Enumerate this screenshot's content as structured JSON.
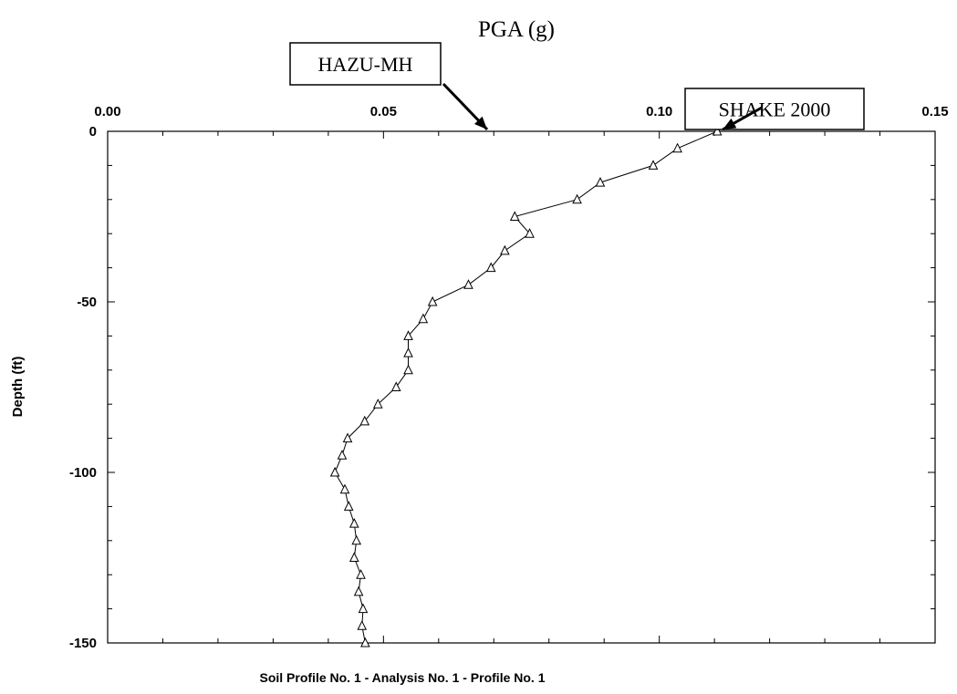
{
  "chart_data": {
    "type": "line",
    "title": "PGA (g)",
    "xlabel": "Soil Profile No. 1 - Analysis No. 1 - Profile No. 1",
    "ylabel": "Depth (ft)",
    "xlim": [
      0.0,
      0.15
    ],
    "ylim": [
      -150,
      0
    ],
    "x_ticks": [
      "0.00",
      "0.05",
      "0.10",
      "0.15"
    ],
    "x_tick_values": [
      0.0,
      0.05,
      0.1,
      0.15
    ],
    "y_ticks": [
      "0",
      "-50",
      "-100",
      "-150"
    ],
    "y_tick_values": [
      0,
      -50,
      -100,
      -150
    ],
    "grid": false,
    "marker": "triangle",
    "series": [
      {
        "x": [
          0.1105,
          0.1033,
          0.0989,
          0.0893,
          0.0851,
          0.0738,
          0.0765,
          0.072,
          0.0695,
          0.0654,
          0.0589,
          0.0572,
          0.0545,
          0.0545,
          0.0545,
          0.0523,
          0.049,
          0.0466,
          0.0435,
          0.0425,
          0.0412,
          0.043,
          0.0437,
          0.0447,
          0.0451,
          0.0447,
          0.0459,
          0.0455,
          0.0463,
          0.0461,
          0.0467
        ],
        "y": [
          0,
          -5,
          -10,
          -15,
          -20,
          -25,
          -30,
          -35,
          -40,
          -45,
          -50,
          -55,
          -60,
          -65,
          -70,
          -75,
          -80,
          -85,
          -90,
          -95,
          -100,
          -105,
          -110,
          -115,
          -120,
          -125,
          -130,
          -135,
          -140,
          -145,
          -150
        ]
      }
    ],
    "annotations": [
      {
        "text": "HAZU-MH",
        "target": {
          "x": 0.0688,
          "y": 0
        }
      },
      {
        "text": "SHAKE 2000",
        "target": {
          "x": 0.1115,
          "y": 0
        }
      }
    ]
  }
}
